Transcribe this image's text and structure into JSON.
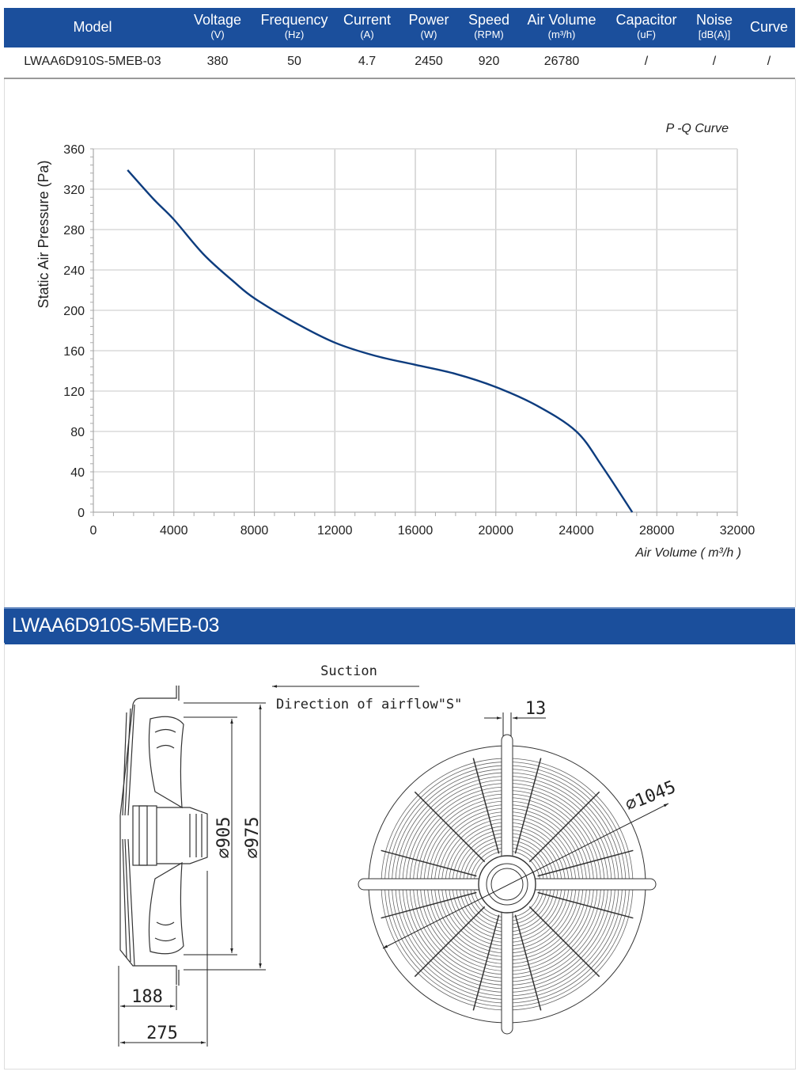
{
  "spec_table": {
    "headers": [
      {
        "title": "Model",
        "unit": ""
      },
      {
        "title": "Voltage",
        "unit": "(V)"
      },
      {
        "title": "Frequency",
        "unit": "(Hz)"
      },
      {
        "title": "Current",
        "unit": "(A)"
      },
      {
        "title": "Power",
        "unit": "(W)"
      },
      {
        "title": "Speed",
        "unit": "(RPM)"
      },
      {
        "title": "Air Volume",
        "unit": "(m³/h)"
      },
      {
        "title": "Capacitor",
        "unit": "(uF)"
      },
      {
        "title": "Noise",
        "unit": "[dB(A)]"
      },
      {
        "title": "Curve",
        "unit": ""
      }
    ],
    "row": [
      "LWAA6D910S-5MEB-03",
      "380",
      "50",
      "4.7",
      "2450",
      "920",
      "26780",
      "/",
      "/",
      "/"
    ],
    "header_color": "#1b4f9c"
  },
  "chart_data": {
    "type": "line",
    "title": "P -Q Curve",
    "xlabel": "Air Volume ( m³/h )",
    "ylabel": "Static Air Pressure  (Pa)",
    "xlim": [
      0,
      32000
    ],
    "ylim": [
      0,
      360
    ],
    "xticks": [
      "0",
      "4000",
      "8000",
      "12000",
      "16000",
      "20000",
      "24000",
      "28000",
      "32000"
    ],
    "yticks": [
      "0",
      "40",
      "80",
      "120",
      "160",
      "200",
      "240",
      "280",
      "320",
      "360"
    ],
    "grid": true,
    "series": [
      {
        "color": "#0d3c7e",
        "x": [
          1700,
          3000,
          4000,
          5500,
          7000,
          8000,
          10000,
          12000,
          14000,
          16000,
          18000,
          20000,
          22000,
          24000,
          25300,
          26780
        ],
        "y": [
          339,
          310,
          290,
          255,
          228,
          212,
          188,
          168,
          155,
          146,
          137,
          124,
          106,
          80,
          45,
          0
        ]
      }
    ]
  },
  "banner": {
    "title": "LWAA6D910S-5MEB-03"
  },
  "drawing": {
    "suction_label": "Suction",
    "airflow_label": "Direction of airflow\"S\"",
    "dim_13": "13",
    "dim_1045": "⌀1045",
    "dim_905": "⌀905",
    "dim_975": "⌀975",
    "dim_188": "188",
    "dim_275": "275"
  }
}
